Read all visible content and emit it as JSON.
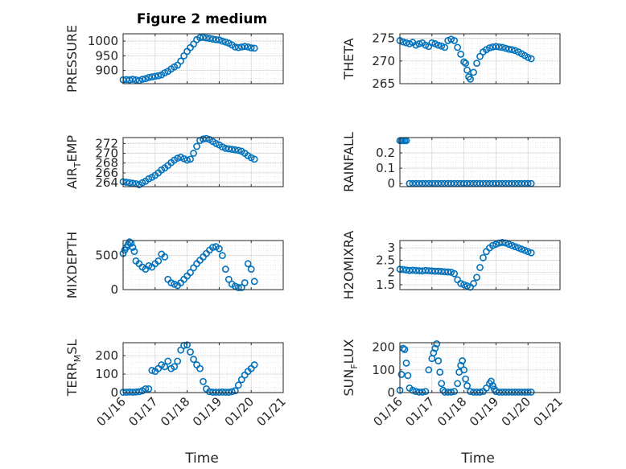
{
  "figure": {
    "title": "Figure 2 medium",
    "xlabel": "Time"
  },
  "chart_data": [
    {
      "type": "scatter",
      "title": "Figure 2 medium",
      "ylabel": "PRESSURE",
      "ylim": [
        855,
        1025
      ],
      "yticks": [
        900,
        950,
        1000
      ],
      "xlim": [
        0,
        5
      ],
      "x": [
        0,
        0.1,
        0.2,
        0.3,
        0.4,
        0.5,
        0.6,
        0.7,
        0.8,
        0.9,
        1.0,
        1.1,
        1.2,
        1.3,
        1.4,
        1.5,
        1.6,
        1.7,
        1.8,
        1.9,
        2.0,
        2.1,
        2.2,
        2.3,
        2.4,
        2.5,
        2.6,
        2.7,
        2.8,
        2.9,
        3.0,
        3.1,
        3.2,
        3.3,
        3.4,
        3.5,
        3.6,
        3.7,
        3.8,
        3.9,
        4.0,
        4.1
      ],
      "y": [
        868,
        869,
        868,
        870,
        868,
        866,
        870,
        872,
        876,
        878,
        880,
        882,
        885,
        892,
        897,
        905,
        912,
        918,
        932,
        950,
        965,
        978,
        990,
        1005,
        1012,
        1013,
        1011,
        1009,
        1007,
        1005,
        1004,
        1000,
        997,
        993,
        987,
        980,
        978,
        980,
        982,
        980,
        977,
        976
      ]
    },
    {
      "type": "scatter",
      "ylabel": "THETA",
      "ylim": [
        265,
        276
      ],
      "yticks": [
        265,
        270,
        275
      ],
      "xlim": [
        0,
        5
      ],
      "x": [
        0,
        0.1,
        0.2,
        0.3,
        0.4,
        0.5,
        0.6,
        0.7,
        0.8,
        0.9,
        1.0,
        1.1,
        1.2,
        1.3,
        1.4,
        1.5,
        1.6,
        1.7,
        1.8,
        1.9,
        2.0,
        2.05,
        2.1,
        2.15,
        2.2,
        2.3,
        2.4,
        2.5,
        2.6,
        2.7,
        2.8,
        2.9,
        3.0,
        3.1,
        3.2,
        3.3,
        3.4,
        3.5,
        3.6,
        3.7,
        3.8,
        3.9,
        4.0,
        4.1
      ],
      "y": [
        274.5,
        274.2,
        274.0,
        273.8,
        274.1,
        273.5,
        273.8,
        274.0,
        273.5,
        273.2,
        274.0,
        273.8,
        273.5,
        273.3,
        273.0,
        274.5,
        274.8,
        274.5,
        273.0,
        271.5,
        269.8,
        269.5,
        268.0,
        266.5,
        266.0,
        267.5,
        269.5,
        271.0,
        272.0,
        272.5,
        272.9,
        273.1,
        273.2,
        273.1,
        273.0,
        272.8,
        272.6,
        272.5,
        272.3,
        272.0,
        271.6,
        271.2,
        270.8,
        270.5
      ]
    },
    {
      "type": "scatter",
      "ylabel": "AIR_TEMP",
      "ylim": [
        263.2,
        273.2
      ],
      "yticks": [
        264,
        266,
        268,
        270,
        272
      ],
      "xlim": [
        0,
        5
      ],
      "x": [
        0,
        0.1,
        0.2,
        0.3,
        0.4,
        0.5,
        0.6,
        0.7,
        0.8,
        0.9,
        1.0,
        1.1,
        1.2,
        1.3,
        1.4,
        1.5,
        1.6,
        1.7,
        1.8,
        1.9,
        2.0,
        2.1,
        2.2,
        2.3,
        2.4,
        2.5,
        2.6,
        2.7,
        2.8,
        2.9,
        3.0,
        3.1,
        3.2,
        3.3,
        3.4,
        3.5,
        3.6,
        3.7,
        3.8,
        3.9,
        4.0,
        4.1
      ],
      "y": [
        264.2,
        264.1,
        264.0,
        263.9,
        263.8,
        263.6,
        264.0,
        264.3,
        264.8,
        265.1,
        265.5,
        266.0,
        266.6,
        267.0,
        267.5,
        268.1,
        268.6,
        269.0,
        269.2,
        268.9,
        268.6,
        268.8,
        270.0,
        271.4,
        272.6,
        272.9,
        273.0,
        272.8,
        272.4,
        272.0,
        271.7,
        271.3,
        271.0,
        270.9,
        270.8,
        270.7,
        270.6,
        270.4,
        270.0,
        269.5,
        269.1,
        268.8
      ]
    },
    {
      "type": "scatter",
      "ylabel": "RAINFALL",
      "ylim": [
        -0.02,
        0.3
      ],
      "yticks": [
        0,
        0.1,
        0.2
      ],
      "xlim": [
        0,
        5
      ],
      "x": [
        0,
        0.05,
        0.1,
        0.15,
        0.2,
        0.3,
        0.4,
        0.5,
        0.6,
        0.7,
        0.8,
        0.9,
        1.0,
        1.1,
        1.2,
        1.3,
        1.4,
        1.5,
        1.6,
        1.7,
        1.8,
        1.9,
        2.0,
        2.1,
        2.2,
        2.3,
        2.4,
        2.5,
        2.6,
        2.7,
        2.8,
        2.9,
        3.0,
        3.1,
        3.2,
        3.3,
        3.4,
        3.5,
        3.6,
        3.7,
        3.8,
        3.9,
        4.0,
        4.1
      ],
      "y": [
        0.28,
        0.28,
        0.28,
        0.28,
        0.28,
        0,
        0,
        0,
        0,
        0,
        0,
        0,
        0,
        0,
        0,
        0,
        0,
        0,
        0,
        0,
        0,
        0,
        0,
        0,
        0,
        0,
        0,
        0,
        0,
        0,
        0,
        0,
        0,
        0,
        0,
        0,
        0,
        0,
        0,
        0,
        0,
        0,
        0,
        0
      ]
    },
    {
      "type": "scatter",
      "ylabel": "MIXDEPTH",
      "ylim": [
        0,
        720
      ],
      "yticks": [
        0,
        500
      ],
      "xlim": [
        0,
        5
      ],
      "x": [
        0,
        0.05,
        0.1,
        0.15,
        0.2,
        0.25,
        0.3,
        0.35,
        0.4,
        0.5,
        0.6,
        0.7,
        0.8,
        0.9,
        1.0,
        1.1,
        1.2,
        1.3,
        1.4,
        1.5,
        1.6,
        1.7,
        1.8,
        1.9,
        2.0,
        2.1,
        2.2,
        2.3,
        2.4,
        2.5,
        2.6,
        2.7,
        2.8,
        2.9,
        3.0,
        3.1,
        3.2,
        3.3,
        3.4,
        3.5,
        3.6,
        3.7,
        3.8,
        3.9,
        4.0,
        4.1
      ],
      "y": [
        530,
        580,
        620,
        660,
        700,
        680,
        620,
        560,
        420,
        380,
        330,
        300,
        350,
        330,
        380,
        420,
        520,
        480,
        150,
        100,
        80,
        60,
        100,
        150,
        200,
        250,
        320,
        380,
        430,
        480,
        530,
        580,
        620,
        630,
        600,
        500,
        300,
        150,
        80,
        50,
        30,
        30,
        100,
        380,
        300,
        120
      ]
    },
    {
      "type": "scatter",
      "ylabel": "H2OMIXRA",
      "ylim": [
        1.3,
        3.3
      ],
      "yticks": [
        1.5,
        2,
        2.5,
        3
      ],
      "xlim": [
        0,
        5
      ],
      "x": [
        0,
        0.1,
        0.2,
        0.3,
        0.4,
        0.5,
        0.6,
        0.7,
        0.8,
        0.9,
        1.0,
        1.1,
        1.2,
        1.3,
        1.4,
        1.5,
        1.6,
        1.7,
        1.8,
        1.9,
        2.0,
        2.1,
        2.2,
        2.3,
        2.4,
        2.5,
        2.6,
        2.7,
        2.8,
        2.9,
        3.0,
        3.1,
        3.2,
        3.3,
        3.4,
        3.5,
        3.6,
        3.7,
        3.8,
        3.9,
        4.0,
        4.1
      ],
      "y": [
        2.13,
        2.12,
        2.1,
        2.08,
        2.09,
        2.08,
        2.07,
        2.06,
        2.08,
        2.07,
        2.06,
        2.05,
        2.05,
        2.04,
        2.03,
        2.02,
        2.01,
        1.95,
        1.7,
        1.55,
        1.5,
        1.45,
        1.4,
        1.55,
        1.8,
        2.2,
        2.6,
        2.85,
        3.0,
        3.1,
        3.15,
        3.2,
        3.22,
        3.2,
        3.15,
        3.1,
        3.05,
        3.0,
        2.95,
        2.9,
        2.85,
        2.8
      ]
    },
    {
      "type": "scatter",
      "ylabel": "TERR_MSL",
      "ylim": [
        0,
        270
      ],
      "yticks": [
        0,
        100,
        200
      ],
      "xlim": [
        0,
        5
      ],
      "x": [
        0,
        0.1,
        0.2,
        0.3,
        0.4,
        0.5,
        0.6,
        0.7,
        0.8,
        0.9,
        1.0,
        1.1,
        1.2,
        1.3,
        1.4,
        1.5,
        1.6,
        1.7,
        1.8,
        1.9,
        2.0,
        2.1,
        2.2,
        2.3,
        2.4,
        2.5,
        2.6,
        2.7,
        2.8,
        2.9,
        3.0,
        3.1,
        3.2,
        3.3,
        3.4,
        3.5,
        3.6,
        3.7,
        3.8,
        3.9,
        4.0,
        4.1
      ],
      "y": [
        2,
        2,
        3,
        2,
        3,
        5,
        10,
        20,
        20,
        120,
        115,
        130,
        150,
        140,
        170,
        130,
        140,
        170,
        230,
        255,
        258,
        220,
        180,
        150,
        130,
        60,
        20,
        5,
        2,
        2,
        2,
        3,
        2,
        2,
        5,
        10,
        40,
        70,
        95,
        115,
        130,
        150
      ]
    },
    {
      "type": "scatter",
      "ylabel": "SUN_FLUX",
      "ylim": [
        0,
        220
      ],
      "yticks": [
        0,
        100,
        200
      ],
      "xlim": [
        0,
        5
      ],
      "x": [
        0,
        0.05,
        0.1,
        0.15,
        0.2,
        0.25,
        0.3,
        0.4,
        0.5,
        0.6,
        0.7,
        0.8,
        0.9,
        1.0,
        1.05,
        1.1,
        1.15,
        1.2,
        1.25,
        1.3,
        1.35,
        1.4,
        1.5,
        1.6,
        1.7,
        1.8,
        1.85,
        1.9,
        1.95,
        2.0,
        2.05,
        2.1,
        2.2,
        2.3,
        2.4,
        2.5,
        2.6,
        2.7,
        2.8,
        2.85,
        2.9,
        2.95,
        3.0,
        3.1,
        3.2,
        3.3,
        3.4,
        3.5,
        3.6,
        3.7,
        3.8,
        3.9,
        4.0,
        4.1
      ],
      "y": [
        10,
        80,
        195,
        190,
        130,
        75,
        20,
        10,
        5,
        2,
        2,
        5,
        100,
        150,
        175,
        195,
        215,
        140,
        90,
        40,
        10,
        2,
        2,
        2,
        5,
        40,
        90,
        120,
        140,
        100,
        60,
        30,
        5,
        2,
        2,
        2,
        5,
        20,
        40,
        50,
        30,
        15,
        5,
        2,
        2,
        2,
        2,
        2,
        2,
        2,
        2,
        2,
        2,
        2
      ]
    }
  ],
  "xaxis": {
    "ticklabels": [
      "01/16",
      "01/17",
      "01/18",
      "01/19",
      "01/20",
      "01/21"
    ]
  },
  "ylabels": [
    {
      "main": "PRESSURE",
      "sub": ""
    },
    {
      "main": "THETA",
      "sub": ""
    },
    {
      "main": "AIR",
      "sub": "T",
      "rest": "EMP"
    },
    {
      "main": "RAINFALL",
      "sub": ""
    },
    {
      "main": "MIXDEPTH",
      "sub": ""
    },
    {
      "main": "H2OMIXRA",
      "sub": ""
    },
    {
      "main": "TERR",
      "sub": "M",
      "rest": "SL"
    },
    {
      "main": "SUN",
      "sub": "F",
      "rest": "LUX"
    }
  ],
  "colors": {
    "marker": "#0072BD",
    "axis": "#262626",
    "grid": "#dcdcdc"
  }
}
